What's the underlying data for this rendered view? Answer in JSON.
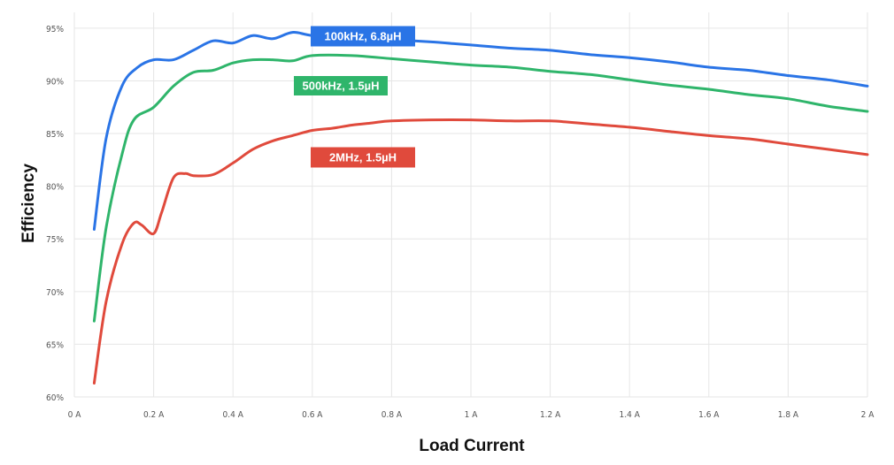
{
  "chart_data": {
    "type": "line",
    "title": "",
    "xlabel": "Load Current",
    "ylabel": "Efficiency",
    "xlim": [
      0,
      2
    ],
    "ylim": [
      60,
      96.5
    ],
    "x_ticks": [
      0,
      0.2,
      0.4,
      0.6,
      0.8,
      1.0,
      1.2,
      1.4,
      1.6,
      1.8,
      2.0
    ],
    "x_tick_labels": [
      "0 A",
      "0.2 A",
      "0.4 A",
      "0.6 A",
      "0.8 A",
      "1 A",
      "1.2 A",
      "1.4 A",
      "1.6 A",
      "1.8 A",
      "2 A"
    ],
    "y_ticks": [
      60,
      65,
      70,
      75,
      80,
      85,
      90,
      95
    ],
    "y_tick_labels": [
      "60%",
      "65%",
      "70%",
      "75%",
      "80%",
      "85%",
      "90%",
      "95%"
    ],
    "grid": true,
    "legend": "none",
    "series": [
      {
        "name": "100kHz, 6.8µH",
        "color": "#2a74e6",
        "x": [
          0.05,
          0.08,
          0.12,
          0.16,
          0.2,
          0.25,
          0.3,
          0.35,
          0.4,
          0.45,
          0.5,
          0.55,
          0.6,
          0.7,
          0.8,
          0.9,
          1.0,
          1.1,
          1.2,
          1.3,
          1.4,
          1.5,
          1.6,
          1.7,
          1.8,
          1.9,
          2.0
        ],
        "values": [
          75.9,
          84.5,
          89.5,
          91.3,
          92.0,
          92.0,
          92.9,
          93.8,
          93.6,
          94.3,
          94.0,
          94.6,
          94.3,
          94.0,
          93.9,
          93.7,
          93.4,
          93.1,
          92.9,
          92.5,
          92.2,
          91.8,
          91.3,
          91.0,
          90.5,
          90.1,
          89.5
        ]
      },
      {
        "name": "500kHz, 1.5µH",
        "color": "#2fb56b",
        "x": [
          0.05,
          0.08,
          0.12,
          0.15,
          0.2,
          0.25,
          0.3,
          0.35,
          0.4,
          0.45,
          0.5,
          0.55,
          0.6,
          0.7,
          0.8,
          0.9,
          1.0,
          1.1,
          1.2,
          1.3,
          1.4,
          1.5,
          1.6,
          1.7,
          1.8,
          1.9,
          2.0
        ],
        "values": [
          67.2,
          76.0,
          83.0,
          86.3,
          87.5,
          89.5,
          90.8,
          91.0,
          91.7,
          92.0,
          92.0,
          91.9,
          92.4,
          92.4,
          92.1,
          91.8,
          91.5,
          91.3,
          90.9,
          90.6,
          90.1,
          89.6,
          89.2,
          88.7,
          88.3,
          87.6,
          87.1
        ]
      },
      {
        "name": "2MHz, 1.5µH",
        "color": "#e04a3c",
        "x": [
          0.05,
          0.08,
          0.12,
          0.15,
          0.17,
          0.2,
          0.22,
          0.25,
          0.28,
          0.3,
          0.35,
          0.4,
          0.45,
          0.5,
          0.55,
          0.6,
          0.65,
          0.7,
          0.75,
          0.8,
          0.9,
          1.0,
          1.1,
          1.2,
          1.3,
          1.4,
          1.5,
          1.6,
          1.7,
          1.8,
          1.9,
          2.0
        ],
        "values": [
          61.3,
          69.0,
          74.5,
          76.5,
          76.3,
          75.5,
          77.5,
          80.8,
          81.2,
          81.0,
          81.1,
          82.2,
          83.5,
          84.3,
          84.8,
          85.3,
          85.5,
          85.8,
          86.0,
          86.2,
          86.3,
          86.3,
          86.2,
          86.2,
          85.9,
          85.6,
          85.2,
          84.8,
          84.5,
          84.0,
          83.5,
          83.0
        ]
      }
    ],
    "annotations": [
      {
        "text": "100kHz, 6.8µH",
        "color": "#2a74e6"
      },
      {
        "text": "500kHz, 1.5µH",
        "color": "#2fb56b"
      },
      {
        "text": "2MHz, 1.5µH",
        "color": "#e04a3c"
      }
    ]
  }
}
